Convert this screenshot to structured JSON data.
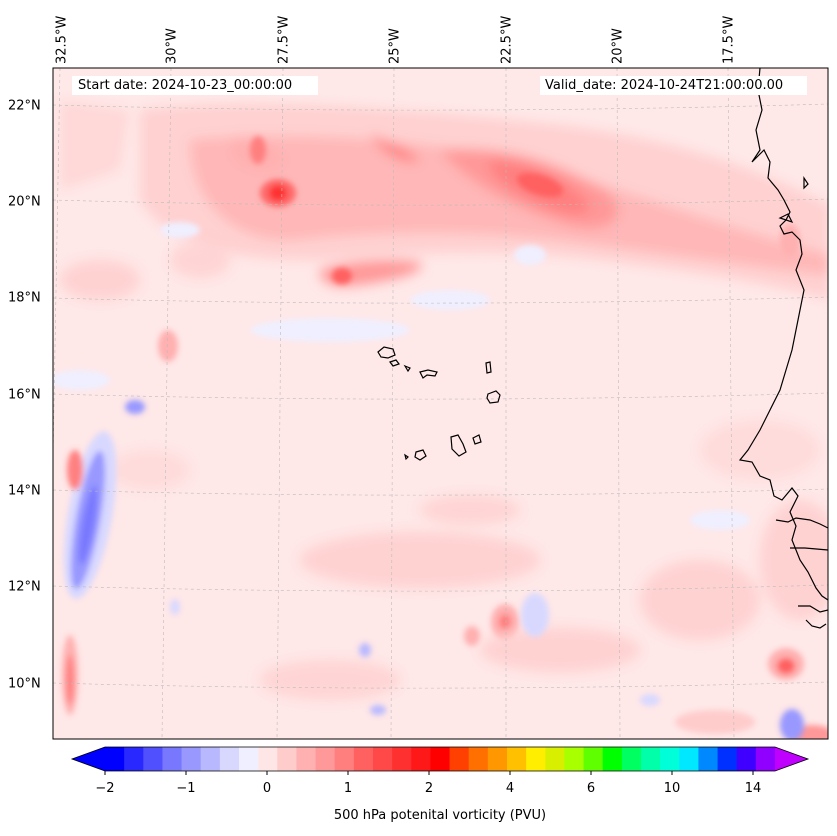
{
  "map": {
    "start_date": "Start date: 2024-10-23_00:00:00",
    "valid_date": "Valid_date: 2024-10-24T21:00:00.00",
    "lon_labels": [
      "32.5°W",
      "30°W",
      "27.5°W",
      "25°W",
      "22.5°W",
      "20°W",
      "17.5°W"
    ],
    "lat_labels": [
      "22°N",
      "20°N",
      "18°N",
      "16°N",
      "14°N",
      "12°N",
      "10°N"
    ],
    "extent": {
      "lon_min": -32.6,
      "lon_max": -15.0,
      "lat_min": 8.9,
      "lat_max": 22.8
    }
  },
  "colorbar": {
    "label": "500 hPa potenital vorticity (PVU)",
    "tick_labels": [
      "−2",
      "−1",
      "0",
      "1",
      "2",
      "4",
      "6",
      "10",
      "14"
    ],
    "colors": [
      "#0000ff",
      "#2828ff",
      "#5050ff",
      "#7878ff",
      "#9898ff",
      "#b8b8ff",
      "#d8d8ff",
      "#efefff",
      "#ffe6e6",
      "#ffcccc",
      "#ffb0b0",
      "#ff9898",
      "#ff7f7f",
      "#ff6060",
      "#ff4848",
      "#ff3030",
      "#ff1818",
      "#ff0000",
      "#ff4000",
      "#ff7000",
      "#ff9800",
      "#ffc000",
      "#ffee00",
      "#d8f000",
      "#a8ff00",
      "#60ff00",
      "#00ff00",
      "#00ff60",
      "#00ffa8",
      "#00ffd8",
      "#00e8ff",
      "#0088ff",
      "#0030ff",
      "#4000ff",
      "#9000ff"
    ],
    "under_color": "#0000ff",
    "over_color": "#c000ff"
  }
}
